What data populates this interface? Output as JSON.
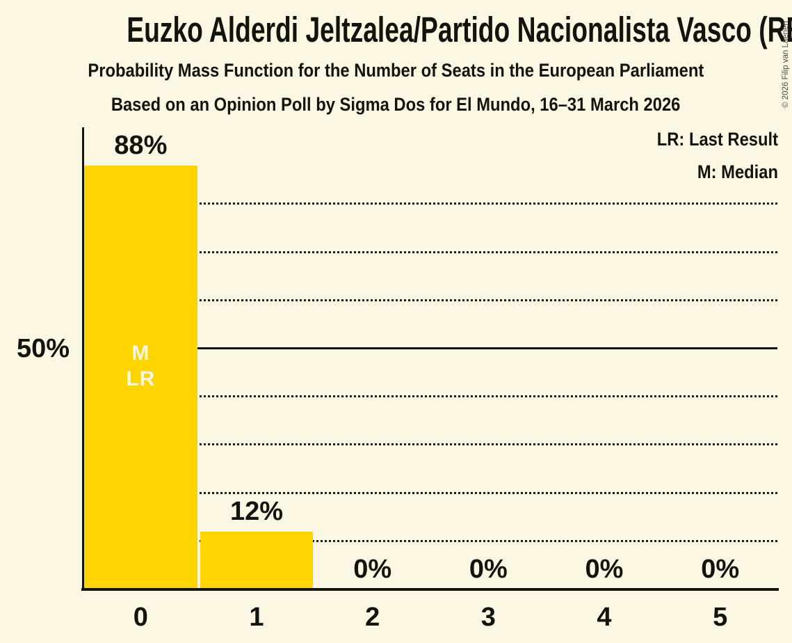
{
  "title": "Euzko Alderdi Jeltzalea/Partido Nacionalista Vasco (RE)",
  "subtitle1": "Probability Mass Function for the Number of Seats in the European Parliament",
  "subtitle2": "Based on an Opinion Poll by Sigma Dos for El Mundo, 16–31 March 2026",
  "legend": {
    "lr": "LR: Last Result",
    "m": "M: Median"
  },
  "y_axis_label": "50%",
  "copyright": "© 2026 Filip van Laenen",
  "colors": {
    "background": "#fbf7e3",
    "bar": "#fed402",
    "text": "#14140f",
    "annotation_text": "#faf6e2"
  },
  "chart_data": {
    "type": "bar",
    "categories": [
      "0",
      "1",
      "2",
      "3",
      "4",
      "5"
    ],
    "values": [
      88,
      12,
      0,
      0,
      0,
      0
    ],
    "value_labels": [
      "88%",
      "12%",
      "0%",
      "0%",
      "0%",
      "0%"
    ],
    "title": "Probability Mass Function for the Number of Seats in the European Parliament",
    "xlabel": "",
    "ylabel": "",
    "ylim": [
      0,
      96
    ],
    "gridlines": {
      "dotted_percent": [
        10,
        20,
        30,
        40,
        60,
        70,
        80
      ],
      "solid_percent": [
        50
      ]
    },
    "annotation": {
      "column": 0,
      "lines": [
        "M",
        "LR"
      ]
    },
    "legend_position": "top-right",
    "grid": true
  }
}
